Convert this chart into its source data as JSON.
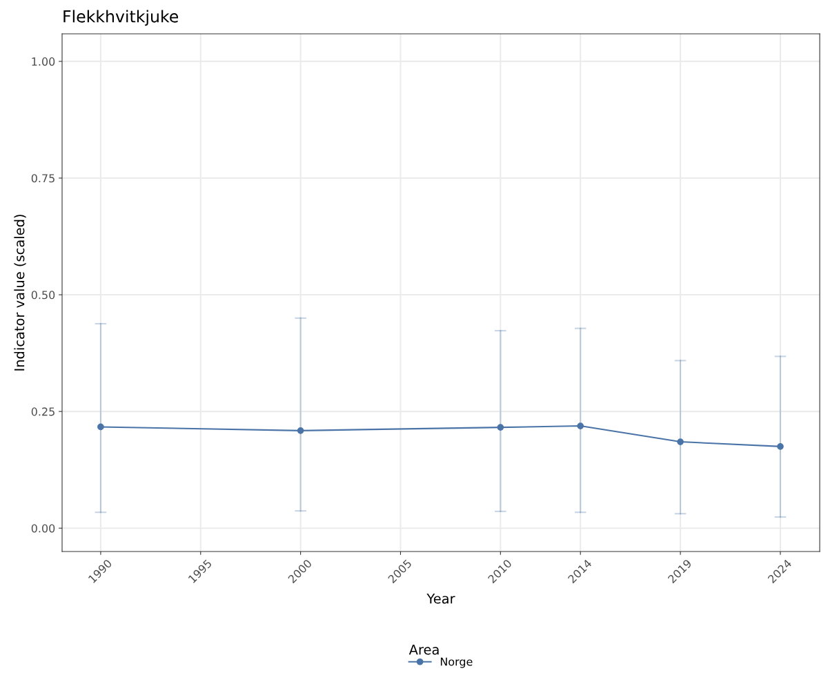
{
  "chart_data": {
    "type": "line",
    "title": "Flekkhvitkjuke",
    "xlabel": "Year",
    "ylabel": "Indicator value (scaled)",
    "legend_title": "Area",
    "x": [
      1990,
      2000,
      2010,
      2014,
      2019,
      2024
    ],
    "series": [
      {
        "name": "Norge",
        "color": "#4a74a8",
        "values": [
          0.217,
          0.209,
          0.216,
          0.219,
          0.185,
          0.175
        ],
        "errors": [
          [
            0.034,
            0.438
          ],
          [
            0.037,
            0.45
          ],
          [
            0.036,
            0.423
          ],
          [
            0.034,
            0.428
          ],
          [
            0.031,
            0.359
          ],
          [
            0.024,
            0.368
          ]
        ]
      }
    ],
    "xlim": [
      1988.07,
      2025.97
    ],
    "ylim": [
      -0.05,
      1.059
    ],
    "xticks": [
      1990,
      1995,
      2000,
      2005,
      2010,
      2014,
      2019,
      2024
    ],
    "yticks": [
      {
        "value": 0,
        "label": "0.00"
      },
      {
        "value": 0.25,
        "label": "0.25"
      },
      {
        "value": 0.5,
        "label": "0.50"
      },
      {
        "value": 0.75,
        "label": "0.75"
      },
      {
        "value": 1,
        "label": "1.00"
      }
    ],
    "grid": true,
    "legend": "bottom",
    "marker": "circle",
    "line_style": "solid"
  }
}
